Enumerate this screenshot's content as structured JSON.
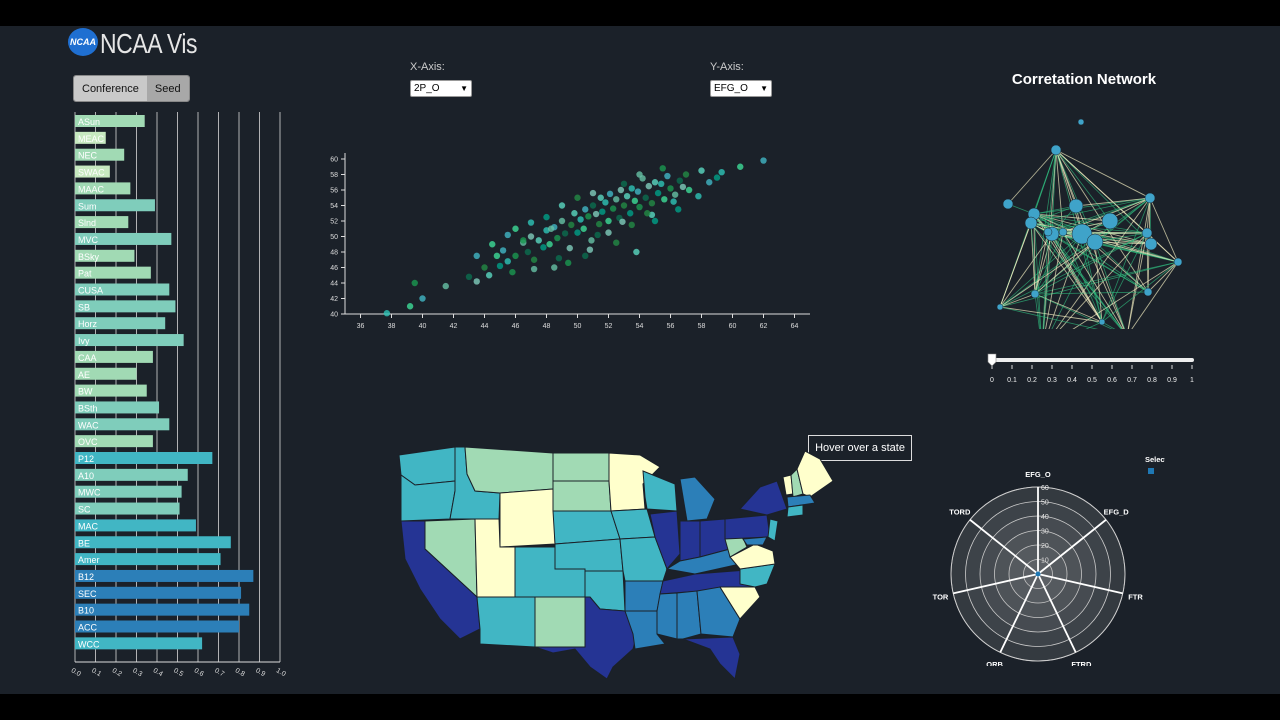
{
  "app": {
    "logo_text": "NCAA",
    "title": "NCAA Vis"
  },
  "toggle": {
    "conference_label": "Conference",
    "seed_label": "Seed",
    "active": "Seed"
  },
  "scatter_controls": {
    "x_label": "X-Axis:",
    "x_value": "2P_O",
    "y_label": "Y-Axis:",
    "y_value": "EFG_O"
  },
  "network": {
    "title": "Corretation Network",
    "slider_value": 0,
    "slider_ticks": [
      "0",
      "0.1",
      "0.2",
      "0.3",
      "0.4",
      "0.5",
      "0.6",
      "0.7",
      "0.8",
      "0.9",
      "1"
    ]
  },
  "map": {
    "tooltip": "Hover over a state"
  },
  "radar": {
    "legend_label": "Selected",
    "legend_color": "#1f78b4",
    "axes": [
      "EFG_O",
      "EFG_D",
      "FTR",
      "FTRD",
      "ORB",
      "TOR",
      "TORD"
    ],
    "rings": [
      "10",
      "20",
      "30",
      "40",
      "50",
      "60"
    ]
  },
  "chart_data": [
    {
      "type": "bar",
      "orientation": "horizontal",
      "categories": [
        "ASun",
        "MEAC",
        "NEC",
        "SWAC",
        "MAAC",
        "Sum",
        "Slnd",
        "MVC",
        "BSky",
        "Pat",
        "CUSA",
        "SB",
        "Horz",
        "Ivy",
        "CAA",
        "AE",
        "BW",
        "BSth",
        "WAC",
        "OVC",
        "P12",
        "A10",
        "MWC",
        "SC",
        "MAC",
        "BE",
        "Amer",
        "B12",
        "SEC",
        "B10",
        "ACC",
        "WCC"
      ],
      "values": [
        0.34,
        0.15,
        0.24,
        0.17,
        0.27,
        0.39,
        0.26,
        0.47,
        0.29,
        0.37,
        0.46,
        0.49,
        0.44,
        0.53,
        0.38,
        0.3,
        0.35,
        0.41,
        0.46,
        0.38,
        0.67,
        0.55,
        0.52,
        0.51,
        0.59,
        0.76,
        0.71,
        0.87,
        0.81,
        0.85,
        0.8,
        0.62
      ],
      "xlim": [
        0,
        1
      ],
      "x_ticks": [
        "0.0",
        "0.1",
        "0.2",
        "0.3",
        "0.4",
        "0.5",
        "0.6",
        "0.7",
        "0.8",
        "0.9",
        "1.0"
      ],
      "grid": true
    },
    {
      "type": "scatter",
      "xlabel": "",
      "ylabel": "",
      "xlim": [
        35,
        65
      ],
      "ylim": [
        40,
        60
      ],
      "x_ticks": [
        36,
        38,
        40,
        42,
        44,
        46,
        48,
        50,
        52,
        54,
        56,
        58,
        60,
        62,
        64
      ],
      "y_ticks": [
        40,
        42,
        44,
        46,
        48,
        50,
        52,
        54,
        56,
        58,
        60
      ],
      "points": [
        [
          37.7,
          40.1
        ],
        [
          39.2,
          41.0
        ],
        [
          40.0,
          42.0
        ],
        [
          39.5,
          44.0
        ],
        [
          41.5,
          43.6
        ],
        [
          43.0,
          44.8
        ],
        [
          43.5,
          44.2
        ],
        [
          44.0,
          46.0
        ],
        [
          44.3,
          45.0
        ],
        [
          45.0,
          46.2
        ],
        [
          45.5,
          46.8
        ],
        [
          44.8,
          47.5
        ],
        [
          45.2,
          48.2
        ],
        [
          46.0,
          47.5
        ],
        [
          46.5,
          49.2
        ],
        [
          46.8,
          48.0
        ],
        [
          47.0,
          50.0
        ],
        [
          47.2,
          47.0
        ],
        [
          47.5,
          49.5
        ],
        [
          47.8,
          48.6
        ],
        [
          48.0,
          50.8
        ],
        [
          48.2,
          49.0
        ],
        [
          48.5,
          51.2
        ],
        [
          48.7,
          49.8
        ],
        [
          49.0,
          52.0
        ],
        [
          49.2,
          50.4
        ],
        [
          49.5,
          48.5
        ],
        [
          49.6,
          51.5
        ],
        [
          49.8,
          53.0
        ],
        [
          50.0,
          50.5
        ],
        [
          50.2,
          52.2
        ],
        [
          50.4,
          51.0
        ],
        [
          50.5,
          53.5
        ],
        [
          50.7,
          52.6
        ],
        [
          50.9,
          49.5
        ],
        [
          51.0,
          54.0
        ],
        [
          51.2,
          52.9
        ],
        [
          51.4,
          51.6
        ],
        [
          51.5,
          55.0
        ],
        [
          51.6,
          53.2
        ],
        [
          51.8,
          54.4
        ],
        [
          52.0,
          52.0
        ],
        [
          52.1,
          55.5
        ],
        [
          52.3,
          53.6
        ],
        [
          52.5,
          54.8
        ],
        [
          52.7,
          52.4
        ],
        [
          52.8,
          56.0
        ],
        [
          53.0,
          54.0
        ],
        [
          53.2,
          55.2
        ],
        [
          53.4,
          53.0
        ],
        [
          53.5,
          56.2
        ],
        [
          53.7,
          54.6
        ],
        [
          53.9,
          55.8
        ],
        [
          54.0,
          53.8
        ],
        [
          54.2,
          57.5
        ],
        [
          54.4,
          55.0
        ],
        [
          54.6,
          56.5
        ],
        [
          54.8,
          54.3
        ],
        [
          55.0,
          57.0
        ],
        [
          55.2,
          55.6
        ],
        [
          55.4,
          56.8
        ],
        [
          55.6,
          54.8
        ],
        [
          55.8,
          57.8
        ],
        [
          56.0,
          56.2
        ],
        [
          56.3,
          55.4
        ],
        [
          56.6,
          57.2
        ],
        [
          56.8,
          56.4
        ],
        [
          57.0,
          58.0
        ],
        [
          58.0,
          58.5
        ],
        [
          59.0,
          57.6
        ],
        [
          59.3,
          58.3
        ],
        [
          60.5,
          59.0
        ],
        [
          62.0,
          59.8
        ],
        [
          55.5,
          58.8
        ],
        [
          54.0,
          58.0
        ],
        [
          53.0,
          56.8
        ],
        [
          51.0,
          55.6
        ],
        [
          50.0,
          55.0
        ],
        [
          49.0,
          54.0
        ],
        [
          48.0,
          52.5
        ],
        [
          47.0,
          51.8
        ],
        [
          46.0,
          51.0
        ],
        [
          45.5,
          50.2
        ],
        [
          46.5,
          49.5
        ],
        [
          48.5,
          46.0
        ],
        [
          50.5,
          47.5
        ],
        [
          52.0,
          50.5
        ],
        [
          53.5,
          51.5
        ],
        [
          54.8,
          52.8
        ],
        [
          56.5,
          53.5
        ],
        [
          57.8,
          55.2
        ],
        [
          44.5,
          49.0
        ],
        [
          43.5,
          47.5
        ],
        [
          45.8,
          45.4
        ],
        [
          47.2,
          45.8
        ],
        [
          48.8,
          47.2
        ],
        [
          50.8,
          48.3
        ],
        [
          52.5,
          49.2
        ],
        [
          53.8,
          48.0
        ],
        [
          55.0,
          52.0
        ],
        [
          56.2,
          54.5
        ],
        [
          57.2,
          56.0
        ],
        [
          58.5,
          57.0
        ],
        [
          49.4,
          46.6
        ],
        [
          48.3,
          51.0
        ],
        [
          51.3,
          50.2
        ],
        [
          52.9,
          51.9
        ],
        [
          54.5,
          53.0
        ]
      ]
    }
  ]
}
